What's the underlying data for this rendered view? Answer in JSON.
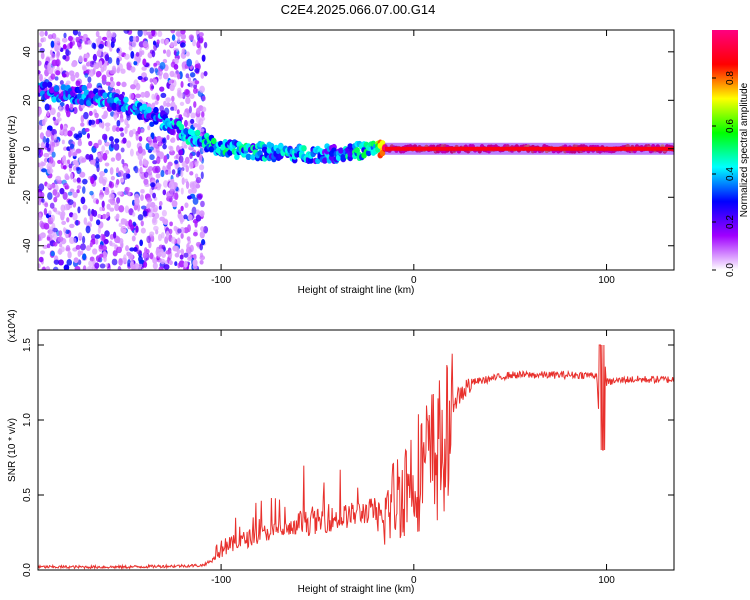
{
  "title": "C2E4.2025.066.07.00.G14",
  "colors": {
    "snr_line": "#e8302c",
    "axis": "#000000",
    "background": "#ffffff"
  },
  "chart_data": [
    {
      "type": "heatmap",
      "panel": "top",
      "xlabel": "Height of straight line (km)",
      "ylabel": "Frequency (Hz)",
      "xlim": [
        -195,
        135
      ],
      "ylim": [
        -50,
        49
      ],
      "xticks": [
        -100,
        0,
        100
      ],
      "xtick_labels": [
        "-100",
        "0",
        "100"
      ],
      "yticks": [
        -40,
        -20,
        0,
        20,
        40
      ],
      "ytick_labels": [
        "-40",
        "-20",
        "0",
        "20",
        "40"
      ],
      "colorbar": {
        "label": "Normalized spectral amplitude",
        "range": [
          0,
          1
        ],
        "ticks": [
          0.0,
          0.2,
          0.4,
          0.6,
          0.8
        ],
        "tick_labels": [
          "0.0",
          "0.2",
          "0.4",
          "0.6",
          "0.8"
        ],
        "colors": [
          "#ffffff",
          "#a000ff",
          "#0000ff",
          "#00ffff",
          "#00ff00",
          "#ffff00",
          "#ff0000",
          "#ff0080"
        ]
      },
      "signal_track": {
        "height_km": [
          -195,
          -170,
          -150,
          -130,
          -115,
          -100,
          -80,
          -60,
          -40,
          -20,
          -15,
          0,
          50,
          100,
          135
        ],
        "frequency_hz": [
          24,
          22,
          18,
          12,
          5,
          0,
          -1,
          -2,
          -2,
          0,
          0,
          0,
          0,
          0,
          0
        ],
        "amplitude": [
          0.25,
          0.3,
          0.3,
          0.3,
          0.35,
          0.4,
          0.35,
          0.35,
          0.3,
          0.45,
          0.9,
          0.9,
          0.9,
          0.9,
          0.85
        ]
      }
    },
    {
      "type": "line",
      "panel": "bottom",
      "xlabel": "Height of straight line (km)",
      "ylabel": "SNR (10 * v/v)",
      "y_scale_note": "(x10^4)",
      "xlim": [
        -195,
        135
      ],
      "ylim": [
        0,
        1.6
      ],
      "xticks": [
        -100,
        0,
        100
      ],
      "xtick_labels": [
        "-100",
        "0",
        "100"
      ],
      "yticks": [
        0.0,
        0.5,
        1.0,
        1.5
      ],
      "ytick_labels": [
        "0.0",
        "0.5",
        "1.0",
        "1.5"
      ],
      "series": [
        {
          "name": "SNR",
          "x": [
            -195,
            -150,
            -110,
            -100,
            -80,
            -60,
            -40,
            -20,
            -10,
            0,
            10,
            20,
            30,
            50,
            80,
            95,
            97,
            98,
            100,
            110,
            135
          ],
          "y": [
            0.01,
            0.01,
            0.02,
            0.08,
            0.18,
            0.22,
            0.26,
            0.32,
            0.6,
            0.8,
            0.95,
            1.12,
            1.25,
            1.3,
            1.3,
            1.3,
            0.78,
            1.56,
            1.25,
            1.27,
            1.27
          ]
        }
      ]
    }
  ]
}
